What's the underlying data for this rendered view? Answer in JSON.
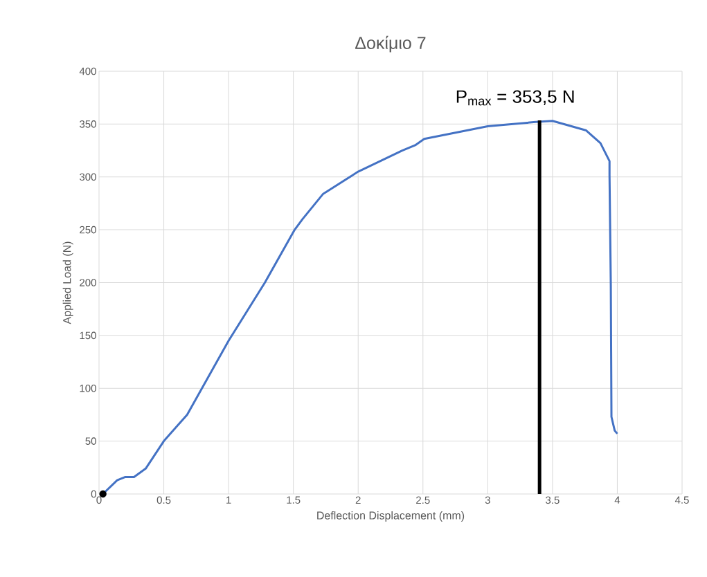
{
  "chart_data": {
    "type": "line",
    "title": "Δοκίμιο 7",
    "xlabel": "Deflection Displacement (mm)",
    "ylabel": "Applied Load (N)",
    "xlim": [
      0,
      4.5
    ],
    "ylim": [
      0,
      400
    ],
    "xticks": [
      0,
      0.5,
      1,
      1.5,
      2,
      2.5,
      3,
      3.5,
      4,
      4.5
    ],
    "yticks": [
      0,
      50,
      100,
      150,
      200,
      250,
      300,
      350,
      400
    ],
    "grid": true,
    "series": [
      {
        "color": "#4472c4",
        "x": [
          0.03,
          0.14,
          0.2,
          0.27,
          0.36,
          0.5,
          0.68,
          1.0,
          1.28,
          1.51,
          1.57,
          1.73,
          2.0,
          2.34,
          2.44,
          2.51,
          3.0,
          3.37,
          3.5,
          3.76,
          3.87,
          3.94,
          3.94,
          3.95,
          3.955,
          3.98,
          4.0
        ],
        "values": [
          0,
          13,
          16,
          16,
          24,
          50,
          75,
          145,
          200,
          250,
          260,
          284,
          305,
          325,
          330,
          336,
          348,
          352,
          353,
          344,
          332,
          315,
          302,
          197,
          73,
          60,
          57
        ]
      },
      {
        "color": "#000000",
        "x": [
          3.4,
          3.4
        ],
        "values": [
          0,
          353.5
        ]
      },
      {
        "type": "scatter",
        "color": "#000000",
        "marker": "circle",
        "x": [
          0.03
        ],
        "values": [
          0
        ]
      }
    ],
    "annotations": [
      {
        "text": "P$_{max}$ = 353,5 N",
        "x": 3.4,
        "y": 353.5
      }
    ]
  }
}
